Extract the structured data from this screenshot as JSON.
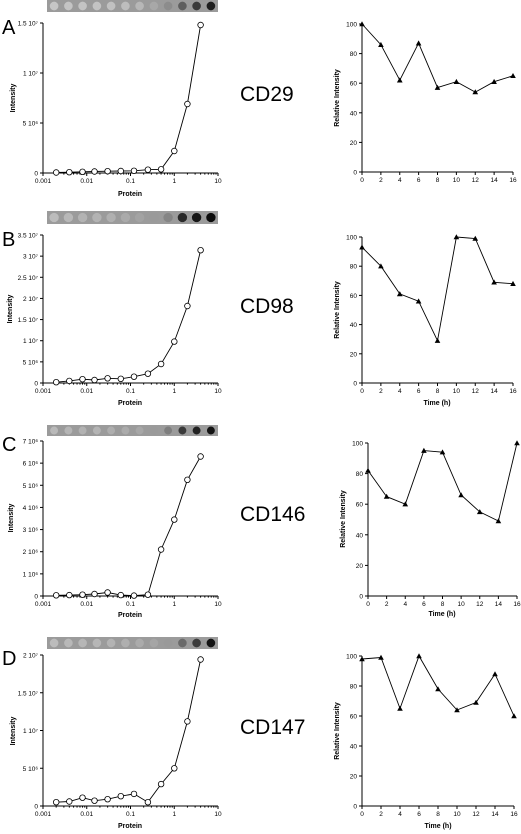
{
  "panels": [
    {
      "letter": "A",
      "marker": "CD29",
      "chart_data": [
        {
          "type": "scatter",
          "xlabel": "Protein",
          "ylabel": "Intensity",
          "xscale": "log",
          "xlim": [
            0.001,
            10
          ],
          "xticks": [
            "0.001",
            "0.01",
            "0.1",
            "1",
            "10"
          ],
          "ylim": [
            0,
            15000000
          ],
          "yticks": [
            "0",
            "5 10⁶",
            "1 10⁷",
            "1.5 10⁷"
          ],
          "marker_style": "open-circle",
          "dot_blot": [
            "#c6c6c6",
            "#c4c4c4",
            "#c3c3c3",
            "#c3c3c3",
            "#c1c1c1",
            "#bdbdbd",
            "#b7b7b7",
            "#a8a8a8",
            "#8c8c8c",
            "#5e5e5e",
            "#3a3a3a",
            "#1e1e1e"
          ],
          "x": [
            0.002,
            0.004,
            0.008,
            0.015,
            0.03,
            0.06,
            0.12,
            0.25,
            0.5,
            1.0,
            2.0,
            4.0
          ],
          "y": [
            50000,
            80000,
            120000,
            150000,
            180000,
            200000,
            220000,
            330000,
            370000,
            2200000,
            6900000,
            14800000
          ]
        },
        {
          "type": "line",
          "xlabel": "",
          "ylabel": "Relative Intensity",
          "xlim": [
            0,
            16
          ],
          "xticks": [
            "0",
            "2",
            "4",
            "6",
            "8",
            "10",
            "12",
            "14",
            "16"
          ],
          "ylim": [
            0,
            100
          ],
          "yticks": [
            "0",
            "20",
            "40",
            "60",
            "80",
            "100"
          ],
          "marker_style": "filled-triangle",
          "x": [
            0,
            2,
            4,
            6,
            8,
            10,
            12,
            14,
            16
          ],
          "y": [
            100,
            86,
            62,
            87,
            57,
            61,
            54,
            61,
            65
          ]
        }
      ]
    },
    {
      "letter": "B",
      "marker": "CD98",
      "chart_data": [
        {
          "type": "scatter",
          "xlabel": "Protein",
          "ylabel": "Intensity",
          "xscale": "log",
          "xlim": [
            0.001,
            10
          ],
          "xticks": [
            "0.001",
            "0.01",
            "0.1",
            "1",
            "10"
          ],
          "ylim": [
            0,
            35000000
          ],
          "yticks": [
            "0",
            "5 10⁶",
            "1 10⁷",
            "1.5 10⁷",
            "2 10⁷",
            "2.5 10⁷",
            "3 10⁷",
            "3.5 10⁷"
          ],
          "marker_style": "open-circle",
          "dot_blot": [
            "#bcbcbc",
            "#b8b8b8",
            "#b3b3b3",
            "#b3b3b3",
            "#b0b0b0",
            "#aaaaaa",
            "#a3a3a3",
            "#9a9a9a",
            "#858585",
            "#2a2a2a",
            "#161616",
            "#0c0c0c"
          ],
          "x": [
            0.002,
            0.004,
            0.008,
            0.015,
            0.03,
            0.06,
            0.12,
            0.25,
            0.5,
            1.0,
            2.0,
            4.0
          ],
          "y": [
            200000,
            500000,
            900000,
            700000,
            1100000,
            1000000,
            1500000,
            2200000,
            4500000,
            9800000,
            18200000,
            31400000
          ]
        },
        {
          "type": "line",
          "xlabel": "Time (h)",
          "ylabel": "Relative Intensity",
          "xlim": [
            0,
            16
          ],
          "xticks": [
            "0",
            "2",
            "4",
            "6",
            "8",
            "10",
            "12",
            "14",
            "16"
          ],
          "ylim": [
            0,
            100
          ],
          "yticks": [
            "0",
            "20",
            "40",
            "60",
            "80",
            "100"
          ],
          "marker_style": "filled-triangle",
          "x": [
            0,
            2,
            4,
            6,
            8,
            10,
            12,
            14,
            16
          ],
          "y": [
            93,
            80,
            61,
            56,
            29,
            100,
            99,
            69,
            68
          ]
        }
      ]
    },
    {
      "letter": "C",
      "marker": "CD146",
      "chart_data": [
        {
          "type": "scatter",
          "xlabel": "Protein",
          "ylabel": "Intensity",
          "xscale": "log",
          "xlim": [
            0.001,
            10
          ],
          "xticks": [
            "0.001",
            "0.01",
            "0.1",
            "1",
            "10"
          ],
          "ylim": [
            0,
            7000000
          ],
          "yticks": [
            "0",
            "1 10⁶",
            "2 10⁶",
            "3 10⁶",
            "4 10⁶",
            "5 10⁶",
            "6 10⁶",
            "7 10⁶"
          ],
          "marker_style": "open-circle",
          "dot_blot": [
            "#b9b9b9",
            "#b5b5b5",
            "#b2b2b2",
            "#b4b4b4",
            "#aeaeae",
            "#ababab",
            "#a7a7a7",
            "#9a9a9a",
            "#7e7e7e",
            "#3a3a3a",
            "#222222",
            "#141414"
          ],
          "x": [
            0.002,
            0.004,
            0.008,
            0.015,
            0.03,
            0.06,
            0.12,
            0.25,
            0.5,
            1.0,
            2.0,
            4.0
          ],
          "y": [
            30000,
            40000,
            60000,
            90000,
            160000,
            40000,
            20000,
            60000,
            2100000,
            3450000,
            5250000,
            6300000
          ]
        },
        {
          "type": "line",
          "xlabel": "Time (h)",
          "ylabel": "Relative Intensity",
          "xlim": [
            0,
            16
          ],
          "xticks": [
            "0",
            "2",
            "4",
            "6",
            "8",
            "10",
            "12",
            "14",
            "16"
          ],
          "ylim": [
            0,
            100
          ],
          "yticks": [
            "0",
            "20",
            "40",
            "60",
            "80",
            "100"
          ],
          "marker_style": "filled-triangle",
          "x": [
            0,
            2,
            4,
            6,
            8,
            10,
            12,
            14,
            16
          ],
          "y": [
            82,
            65,
            60,
            95,
            94,
            66,
            55,
            49,
            100
          ]
        }
      ]
    },
    {
      "letter": "D",
      "marker": "CD147",
      "chart_data": [
        {
          "type": "scatter",
          "xlabel": "Protein",
          "ylabel": "Intensity",
          "xscale": "log",
          "xlim": [
            0.001,
            10
          ],
          "xticks": [
            "0.001",
            "0.01",
            "0.1",
            "1",
            "10"
          ],
          "ylim": [
            0,
            20000000
          ],
          "yticks": [
            "0",
            "5 10⁶",
            "1 10⁷",
            "1.5 10⁷",
            "2 10⁷"
          ],
          "marker_style": "open-circle",
          "dot_blot": [
            "#bcbcbc",
            "#b8b8b8",
            "#b6b6b6",
            "#b6b6b6",
            "#b3b3b3",
            "#afafaf",
            "#ababab",
            "#a5a5a5",
            "#999999",
            "#6a6a6a",
            "#3c3c3c",
            "#141414"
          ],
          "x": [
            0.002,
            0.004,
            0.008,
            0.015,
            0.03,
            0.06,
            0.12,
            0.25,
            0.5,
            1.0,
            2.0,
            4.0
          ],
          "y": [
            500000,
            600000,
            1100000,
            700000,
            900000,
            1300000,
            1600000,
            500000,
            2900000,
            5000000,
            11200000,
            19400000
          ]
        },
        {
          "type": "line",
          "xlabel": "Time (h)",
          "ylabel": "Relative Intensity",
          "xlim": [
            0,
            16
          ],
          "xticks": [
            "0",
            "2",
            "4",
            "6",
            "8",
            "10",
            "12",
            "14",
            "16"
          ],
          "ylim": [
            0,
            100
          ],
          "yticks": [
            "0",
            "20",
            "40",
            "60",
            "80",
            "100"
          ],
          "marker_style": "filled-triangle",
          "x": [
            0,
            2,
            4,
            6,
            8,
            10,
            12,
            14,
            16
          ],
          "y": [
            98,
            99,
            65,
            100,
            78,
            64,
            69,
            88,
            60
          ]
        }
      ]
    }
  ]
}
